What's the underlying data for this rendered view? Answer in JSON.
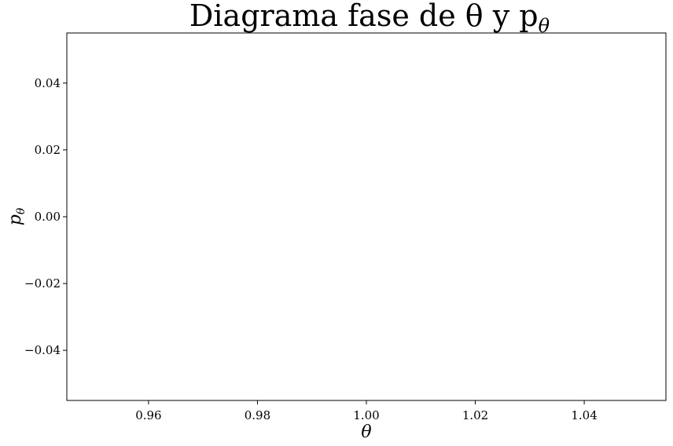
{
  "chart_data": {
    "type": "scatter",
    "title": "Diagrama fase de θ y p",
    "title_sub": "θ",
    "xlabel": "θ",
    "ylabel": "p",
    "ylabel_sub": "θ",
    "xlim": [
      0.945,
      1.055
    ],
    "ylim": [
      -0.055,
      0.055
    ],
    "xticks": [
      0.96,
      0.98,
      1.0,
      1.02,
      1.04
    ],
    "xtick_labels": [
      "0.96",
      "0.98",
      "1.00",
      "1.02",
      "1.04"
    ],
    "yticks": [
      0.04,
      0.02,
      0.0,
      -0.02,
      -0.04
    ],
    "ytick_labels": [
      "0.04",
      "0.02",
      "0.00",
      "−0.02",
      "−0.04"
    ],
    "series": [],
    "grid": false,
    "legend": "none"
  }
}
